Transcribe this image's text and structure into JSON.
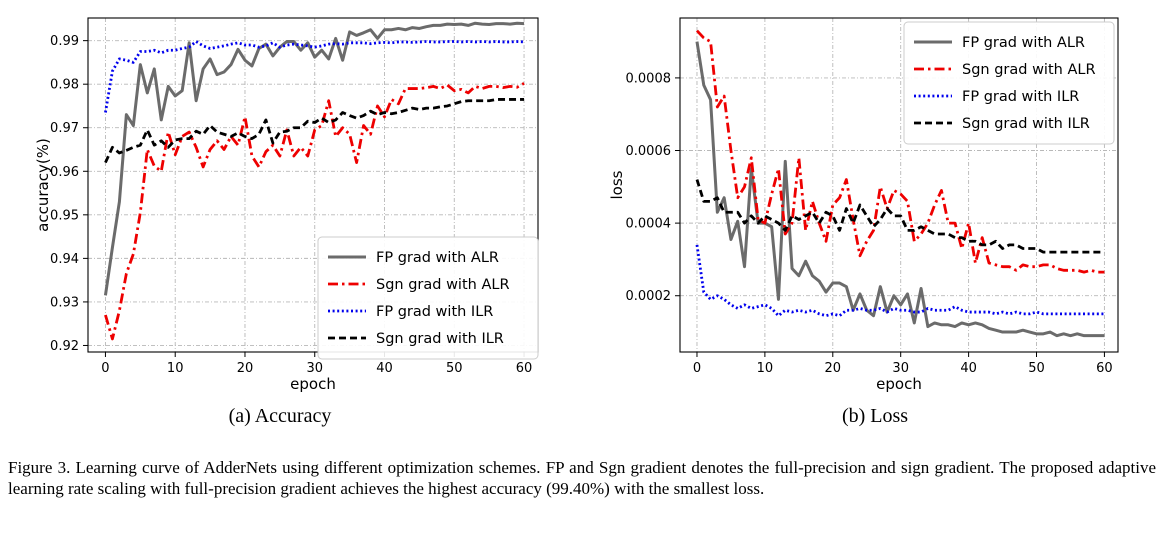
{
  "figure": {
    "caption": "Figure 3. Learning curve of AdderNets using different optimization schemes. FP and Sgn gradient denotes the full-precision and sign gradient. The proposed adaptive learning rate scaling with full-precision gradient achieves the highest accuracy (99.40%) with the smallest loss."
  },
  "colors": {
    "fp_alr": "#6b6b6b",
    "sgn_alr": "#ee0000",
    "fp_ilr": "#0000ee",
    "sgn_ilr": "#000000"
  },
  "chart_data": [
    {
      "type": "line",
      "subcaption": "(a) Accuracy",
      "xlabel": "epoch",
      "ylabel": "accuracy(%)",
      "xlim": [
        -2.5,
        62
      ],
      "ylim": [
        0.9185,
        0.9952
      ],
      "xticks": [
        "0",
        "10",
        "20",
        "30",
        "40",
        "50",
        "60"
      ],
      "yticks": [
        "0.92",
        "0.93",
        "0.94",
        "0.95",
        "0.96",
        "0.97",
        "0.98",
        "0.99"
      ],
      "grid": true,
      "legend_position": "lower-right",
      "x": [
        0,
        1,
        2,
        3,
        4,
        5,
        6,
        7,
        8,
        9,
        10,
        11,
        12,
        13,
        14,
        15,
        16,
        17,
        18,
        19,
        20,
        21,
        22,
        23,
        24,
        25,
        26,
        27,
        28,
        29,
        30,
        31,
        32,
        33,
        34,
        35,
        36,
        37,
        38,
        39,
        40,
        41,
        42,
        43,
        44,
        45,
        46,
        47,
        48,
        49,
        50,
        51,
        52,
        53,
        54,
        55,
        56,
        57,
        58,
        59,
        60
      ],
      "series": [
        {
          "name": "FP grad with ALR",
          "style": "solid",
          "color": "#6b6b6b",
          "values": [
            0.9315,
            0.9425,
            0.953,
            0.973,
            0.9705,
            0.9845,
            0.978,
            0.9835,
            0.9718,
            0.9795,
            0.9773,
            0.9785,
            0.9895,
            0.9762,
            0.9835,
            0.9858,
            0.9822,
            0.9828,
            0.9845,
            0.988,
            0.9855,
            0.9842,
            0.9882,
            0.9892,
            0.9865,
            0.9885,
            0.9898,
            0.9898,
            0.9878,
            0.9895,
            0.9862,
            0.9878,
            0.9858,
            0.9905,
            0.9855,
            0.992,
            0.9912,
            0.9918,
            0.9925,
            0.9905,
            0.9925,
            0.9925,
            0.9928,
            0.9925,
            0.993,
            0.9928,
            0.9932,
            0.9935,
            0.9935,
            0.9938,
            0.9937,
            0.9938,
            0.9935,
            0.994,
            0.9938,
            0.9937,
            0.9939,
            0.9939,
            0.9938,
            0.994,
            0.9939
          ]
        },
        {
          "name": "Sgn grad with ALR",
          "style": "dashdot",
          "color": "#ee0000",
          "values": [
            0.927,
            0.9215,
            0.928,
            0.9365,
            0.941,
            0.9505,
            0.965,
            0.9612,
            0.96,
            0.969,
            0.9638,
            0.968,
            0.969,
            0.9655,
            0.961,
            0.965,
            0.967,
            0.965,
            0.968,
            0.966,
            0.9725,
            0.9635,
            0.961,
            0.9645,
            0.966,
            0.9635,
            0.9695,
            0.9635,
            0.9655,
            0.9635,
            0.9695,
            0.9705,
            0.9762,
            0.968,
            0.97,
            0.9685,
            0.962,
            0.9705,
            0.9685,
            0.975,
            0.9725,
            0.9765,
            0.9755,
            0.979,
            0.979,
            0.979,
            0.9792,
            0.9795,
            0.979,
            0.9798,
            0.9785,
            0.9788,
            0.978,
            0.9795,
            0.979,
            0.9795,
            0.9795,
            0.9792,
            0.9795,
            0.9793,
            0.9802
          ]
        },
        {
          "name": "FP grad with ILR",
          "style": "dotted",
          "color": "#0000ee",
          "values": [
            0.9735,
            0.983,
            0.9858,
            0.9855,
            0.985,
            0.9875,
            0.9875,
            0.9878,
            0.9872,
            0.9878,
            0.9878,
            0.9882,
            0.9885,
            0.9898,
            0.9888,
            0.9882,
            0.9885,
            0.9888,
            0.9892,
            0.9895,
            0.989,
            0.989,
            0.9885,
            0.9888,
            0.9895,
            0.9885,
            0.989,
            0.9892,
            0.989,
            0.9888,
            0.9885,
            0.9888,
            0.9892,
            0.9893,
            0.9892,
            0.9895,
            0.9895,
            0.9895,
            0.9893,
            0.9895,
            0.9896,
            0.9895,
            0.9897,
            0.9897,
            0.9896,
            0.9897,
            0.9898,
            0.9897,
            0.9897,
            0.9898,
            0.9898,
            0.9897,
            0.9898,
            0.9897,
            0.9898,
            0.9897,
            0.9898,
            0.9897,
            0.9897,
            0.9898,
            0.9897
          ]
        },
        {
          "name": "Sgn grad with ILR",
          "style": "dashed",
          "color": "#000000",
          "values": [
            0.962,
            0.9655,
            0.9642,
            0.9648,
            0.9655,
            0.966,
            0.9695,
            0.966,
            0.967,
            0.9655,
            0.9672,
            0.9675,
            0.9675,
            0.9692,
            0.9685,
            0.9705,
            0.969,
            0.9685,
            0.968,
            0.9688,
            0.968,
            0.9675,
            0.9685,
            0.9718,
            0.9665,
            0.969,
            0.9692,
            0.97,
            0.97,
            0.9715,
            0.9712,
            0.9722,
            0.9712,
            0.9718,
            0.9735,
            0.9728,
            0.9722,
            0.9728,
            0.9738,
            0.973,
            0.9735,
            0.9732,
            0.9735,
            0.974,
            0.9745,
            0.9742,
            0.9745,
            0.9745,
            0.9748,
            0.975,
            0.9755,
            0.976,
            0.9762,
            0.9762,
            0.9762,
            0.9762,
            0.9765,
            0.9765,
            0.9765,
            0.9765,
            0.9765
          ]
        }
      ]
    },
    {
      "type": "line",
      "subcaption": "(b) Loss",
      "xlabel": "epoch",
      "ylabel": "loss",
      "xlim": [
        -2.5,
        62
      ],
      "ylim": [
        4.5e-05,
        0.000965
      ],
      "xticks": [
        "0",
        "10",
        "20",
        "30",
        "40",
        "50",
        "60"
      ],
      "yticks": [
        "0.0002",
        "0.0004",
        "0.0006",
        "0.0008"
      ],
      "grid": true,
      "legend_position": "upper-right",
      "x": [
        0,
        1,
        2,
        3,
        4,
        5,
        6,
        7,
        8,
        9,
        10,
        11,
        12,
        13,
        14,
        15,
        16,
        17,
        18,
        19,
        20,
        21,
        22,
        23,
        24,
        25,
        26,
        27,
        28,
        29,
        30,
        31,
        32,
        33,
        34,
        35,
        36,
        37,
        38,
        39,
        40,
        41,
        42,
        43,
        44,
        45,
        46,
        47,
        48,
        49,
        50,
        51,
        52,
        53,
        54,
        55,
        56,
        57,
        58,
        59,
        60
      ],
      "series": [
        {
          "name": "FP grad with ALR",
          "style": "solid",
          "color": "#6b6b6b",
          "values": [
            0.0009,
            0.00078,
            0.00074,
            0.00043,
            0.00047,
            0.000355,
            0.000405,
            0.00028,
            0.00055,
            0.0004,
            0.0004,
            0.00039,
            0.00019,
            0.00057,
            0.000275,
            0.000255,
            0.000295,
            0.000255,
            0.00024,
            0.00021,
            0.000235,
            0.000235,
            0.000225,
            0.00016,
            0.000205,
            0.00016,
            0.000145,
            0.000225,
            0.000155,
            0.0002,
            0.000175,
            0.000205,
            0.000125,
            0.00022,
            0.000115,
            0.000125,
            0.00012,
            0.00012,
            0.000115,
            0.000125,
            0.00012,
            0.000125,
            0.00012,
            0.00011,
            0.000105,
            0.0001,
            0.0001,
            0.0001,
            0.000105,
            0.0001,
            9.5e-05,
            9.5e-05,
            0.0001,
            9e-05,
            9.5e-05,
            9e-05,
            9.5e-05,
            9e-05,
            9e-05,
            9e-05,
            9e-05
          ]
        },
        {
          "name": "Sgn grad with ALR",
          "style": "dashdot",
          "color": "#ee0000",
          "values": [
            0.00093,
            0.00091,
            0.0009,
            0.00072,
            0.00075,
            0.0006,
            0.00047,
            0.0005,
            0.00058,
            0.00041,
            0.0004,
            0.00048,
            0.00055,
            0.00037,
            0.0004,
            0.00058,
            0.00038,
            0.00046,
            0.0004,
            0.00035,
            0.00045,
            0.00047,
            0.00052,
            0.00041,
            0.00031,
            0.00035,
            0.00038,
            0.0005,
            0.00044,
            0.00049,
            0.00048,
            0.00046,
            0.00035,
            0.00037,
            0.0004,
            0.00045,
            0.00049,
            0.0004,
            0.0004,
            0.00033,
            0.0004,
            0.00029,
            0.00036,
            0.00029,
            0.000285,
            0.00028,
            0.00028,
            0.00027,
            0.000285,
            0.00028,
            0.00028,
            0.000285,
            0.000285,
            0.000275,
            0.00027,
            0.00027,
            0.00027,
            0.000265,
            0.00027,
            0.000265,
            0.000265
          ]
        },
        {
          "name": "FP grad with ILR",
          "style": "dotted",
          "color": "#0000ee",
          "values": [
            0.00034,
            0.00021,
            0.00019,
            0.0002,
            0.00019,
            0.000175,
            0.000165,
            0.000175,
            0.000165,
            0.00017,
            0.000175,
            0.000165,
            0.000145,
            0.00016,
            0.000155,
            0.00016,
            0.000155,
            0.00016,
            0.00015,
            0.000145,
            0.00015,
            0.000145,
            0.00016,
            0.00016,
            0.000165,
            0.00016,
            0.00016,
            0.000165,
            0.000155,
            0.000165,
            0.00016,
            0.00016,
            0.000155,
            0.000155,
            0.000165,
            0.00016,
            0.00016,
            0.00016,
            0.00017,
            0.00016,
            0.000155,
            0.000155,
            0.000155,
            0.000155,
            0.00015,
            0.000155,
            0.00015,
            0.000155,
            0.00015,
            0.00015,
            0.000155,
            0.00015,
            0.00015,
            0.00015,
            0.00015,
            0.00015,
            0.00015,
            0.00015,
            0.00015,
            0.00015,
            0.00015
          ]
        },
        {
          "name": "Sgn grad with ILR",
          "style": "dashed",
          "color": "#000000",
          "values": [
            0.00052,
            0.00046,
            0.00046,
            0.00047,
            0.00043,
            0.00043,
            0.00043,
            0.0004,
            0.00042,
            0.0004,
            0.00042,
            0.00041,
            0.0004,
            0.00038,
            0.00042,
            0.00041,
            0.00042,
            0.00043,
            0.0004,
            0.00043,
            0.00042,
            0.00038,
            0.00044,
            0.0004,
            0.00045,
            0.00042,
            0.00039,
            0.00041,
            0.00044,
            0.00042,
            0.00042,
            0.00038,
            0.00038,
            0.00039,
            0.00038,
            0.00037,
            0.00037,
            0.00037,
            0.00036,
            0.00036,
            0.00035,
            0.00035,
            0.00034,
            0.00034,
            0.00035,
            0.00033,
            0.00034,
            0.00034,
            0.00033,
            0.00033,
            0.00033,
            0.00032,
            0.00032,
            0.00032,
            0.00032,
            0.00032,
            0.00032,
            0.00032,
            0.00032,
            0.00032,
            0.00032
          ]
        }
      ]
    }
  ]
}
